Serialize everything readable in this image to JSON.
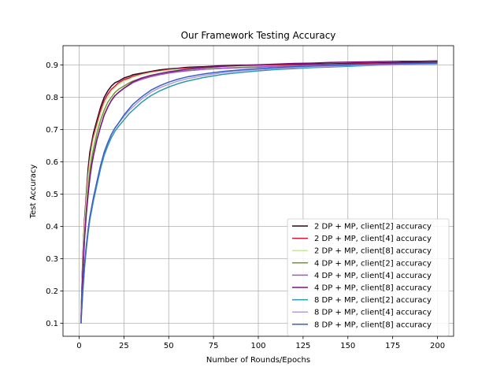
{
  "chart_data": {
    "type": "line",
    "title": "Our Framework Testing Accuracy",
    "xlabel": "Number of Rounds/Epochs",
    "ylabel": "Test Accuracy",
    "xlim": [
      -9,
      209
    ],
    "ylim": [
      0.06,
      0.96
    ],
    "xticks": [
      0,
      25,
      50,
      75,
      100,
      125,
      150,
      175,
      200
    ],
    "yticks": [
      0.1,
      0.2,
      0.3,
      0.4,
      0.5,
      0.6,
      0.7,
      0.8,
      0.9
    ],
    "grid": true,
    "legend_position": "lower right",
    "x": [
      1,
      2,
      3,
      4,
      5,
      6,
      7,
      8,
      10,
      12,
      14,
      16,
      18,
      20,
      22,
      25,
      28,
      30,
      35,
      40,
      45,
      50,
      55,
      60,
      70,
      80,
      90,
      100,
      110,
      120,
      130,
      140,
      150,
      160,
      170,
      180,
      190,
      200
    ],
    "series": [
      {
        "name": "2 DP + MP, client[2] accuracy",
        "color": "#2b0a1e",
        "values": [
          0.1,
          0.3,
          0.42,
          0.5,
          0.58,
          0.63,
          0.66,
          0.69,
          0.73,
          0.77,
          0.8,
          0.82,
          0.835,
          0.845,
          0.85,
          0.86,
          0.865,
          0.87,
          0.875,
          0.88,
          0.885,
          0.888,
          0.89,
          0.893,
          0.895,
          0.898,
          0.9,
          0.9,
          0.902,
          0.902,
          0.903,
          0.904,
          0.905,
          0.906,
          0.907,
          0.908,
          0.908,
          0.909
        ]
      },
      {
        "name": "2 DP + MP, client[4] accuracy",
        "color": "#d0163a",
        "values": [
          0.1,
          0.29,
          0.41,
          0.49,
          0.56,
          0.61,
          0.65,
          0.68,
          0.72,
          0.76,
          0.79,
          0.81,
          0.825,
          0.835,
          0.845,
          0.855,
          0.86,
          0.865,
          0.872,
          0.878,
          0.882,
          0.886,
          0.888,
          0.89,
          0.893,
          0.895,
          0.897,
          0.898,
          0.899,
          0.9,
          0.901,
          0.902,
          0.903,
          0.904,
          0.905,
          0.906,
          0.906,
          0.907
        ]
      },
      {
        "name": "2 DP + MP, client[8] accuracy",
        "color": "#c7e6a4",
        "values": [
          0.1,
          0.28,
          0.4,
          0.48,
          0.55,
          0.6,
          0.64,
          0.67,
          0.71,
          0.75,
          0.78,
          0.8,
          0.82,
          0.83,
          0.84,
          0.85,
          0.856,
          0.862,
          0.87,
          0.876,
          0.88,
          0.884,
          0.886,
          0.888,
          0.891,
          0.893,
          0.895,
          0.896,
          0.897,
          0.898,
          0.899,
          0.9,
          0.901,
          0.902,
          0.903,
          0.903,
          0.904,
          0.905
        ]
      },
      {
        "name": "4 DP + MP, client[2] accuracy",
        "color": "#6e9a2a",
        "values": [
          0.1,
          0.26,
          0.37,
          0.45,
          0.52,
          0.57,
          0.61,
          0.64,
          0.69,
          0.73,
          0.76,
          0.785,
          0.8,
          0.815,
          0.825,
          0.835,
          0.845,
          0.85,
          0.86,
          0.866,
          0.872,
          0.876,
          0.88,
          0.883,
          0.887,
          0.89,
          0.892,
          0.894,
          0.896,
          0.897,
          0.898,
          0.899,
          0.9,
          0.901,
          0.902,
          0.903,
          0.904,
          0.905
        ]
      },
      {
        "name": "4 DP + MP, client[4] accuracy",
        "color": "#9b59c7",
        "values": [
          0.1,
          0.25,
          0.36,
          0.44,
          0.5,
          0.55,
          0.59,
          0.62,
          0.67,
          0.71,
          0.745,
          0.77,
          0.79,
          0.805,
          0.815,
          0.828,
          0.838,
          0.845,
          0.856,
          0.864,
          0.87,
          0.875,
          0.879,
          0.882,
          0.887,
          0.89,
          0.892,
          0.894,
          0.896,
          0.898,
          0.899,
          0.9,
          0.901,
          0.902,
          0.903,
          0.904,
          0.905,
          0.906
        ]
      },
      {
        "name": "4 DP + MP, client[8] accuracy",
        "color": "#7d1480",
        "values": [
          0.1,
          0.25,
          0.36,
          0.44,
          0.5,
          0.55,
          0.59,
          0.62,
          0.67,
          0.71,
          0.745,
          0.77,
          0.79,
          0.805,
          0.815,
          0.828,
          0.84,
          0.848,
          0.86,
          0.868,
          0.874,
          0.879,
          0.883,
          0.887,
          0.892,
          0.896,
          0.899,
          0.901,
          0.903,
          0.905,
          0.906,
          0.908,
          0.909,
          0.91,
          0.911,
          0.912,
          0.912,
          0.913
        ]
      },
      {
        "name": "8 DP + MP, client[2] accuracy",
        "color": "#2a9aaa",
        "values": [
          0.1,
          0.19,
          0.27,
          0.33,
          0.38,
          0.42,
          0.45,
          0.48,
          0.53,
          0.58,
          0.62,
          0.65,
          0.675,
          0.695,
          0.71,
          0.73,
          0.75,
          0.76,
          0.785,
          0.805,
          0.82,
          0.832,
          0.842,
          0.85,
          0.862,
          0.871,
          0.877,
          0.882,
          0.886,
          0.889,
          0.892,
          0.894,
          0.896,
          0.898,
          0.9,
          0.901,
          0.902,
          0.903
        ]
      },
      {
        "name": "8 DP + MP, client[4] accuracy",
        "color": "#b39ddb",
        "values": [
          0.1,
          0.2,
          0.28,
          0.34,
          0.39,
          0.43,
          0.46,
          0.49,
          0.54,
          0.59,
          0.63,
          0.66,
          0.685,
          0.705,
          0.72,
          0.74,
          0.76,
          0.77,
          0.795,
          0.815,
          0.83,
          0.84,
          0.85,
          0.857,
          0.868,
          0.876,
          0.882,
          0.886,
          0.889,
          0.892,
          0.894,
          0.896,
          0.898,
          0.899,
          0.9,
          0.901,
          0.902,
          0.903
        ]
      },
      {
        "name": "8 DP + MP, client[8] accuracy",
        "color": "#3a5fc8",
        "values": [
          0.1,
          0.2,
          0.28,
          0.34,
          0.39,
          0.43,
          0.46,
          0.49,
          0.54,
          0.59,
          0.63,
          0.66,
          0.685,
          0.705,
          0.72,
          0.745,
          0.765,
          0.778,
          0.802,
          0.822,
          0.836,
          0.847,
          0.856,
          0.863,
          0.873,
          0.88,
          0.885,
          0.889,
          0.892,
          0.895,
          0.897,
          0.899,
          0.9,
          0.902,
          0.903,
          0.904,
          0.905,
          0.906
        ]
      }
    ]
  }
}
